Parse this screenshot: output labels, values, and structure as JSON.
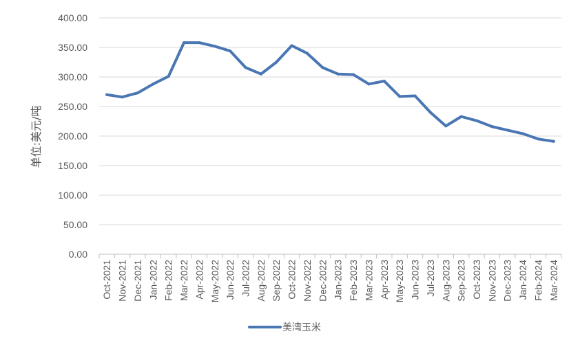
{
  "chart_data": {
    "type": "line",
    "title": "",
    "xlabel": "",
    "ylabel": "单位:美元/吨",
    "ylim": [
      0,
      400
    ],
    "yticks": [
      "0.00",
      "50.00",
      "100.00",
      "150.00",
      "200.00",
      "250.00",
      "300.00",
      "350.00",
      "400.00"
    ],
    "grid": true,
    "legend_position": "bottom",
    "x": [
      "Oct-2021",
      "Nov-2021",
      "Dec-2021",
      "Jan-2022",
      "Feb-2022",
      "Mar-2022",
      "Apr-2022",
      "May-2022",
      "Jun-2022",
      "Jul-2022",
      "Aug-2022",
      "Sep-2022",
      "Oct-2022",
      "Nov-2022",
      "Dec-2022",
      "Jan-2023",
      "Feb-2023",
      "Mar-2023",
      "Apr-2023",
      "May-2023",
      "Jun-2023",
      "Jul-2023",
      "Aug-2023",
      "Sep-2023",
      "Oct-2023",
      "Nov-2023",
      "Dec-2023",
      "Jan-2024",
      "Feb-2024",
      "Mar-2024"
    ],
    "series": [
      {
        "name": "美湾玉米",
        "color": "#4a76b4",
        "values": [
          270,
          266,
          273,
          288,
          301,
          358,
          358,
          352,
          344,
          316,
          305,
          325,
          353,
          340,
          316,
          305,
          304,
          288,
          293,
          267,
          268,
          240,
          217,
          233,
          226,
          216,
          210,
          204,
          195,
          191
        ]
      }
    ]
  }
}
